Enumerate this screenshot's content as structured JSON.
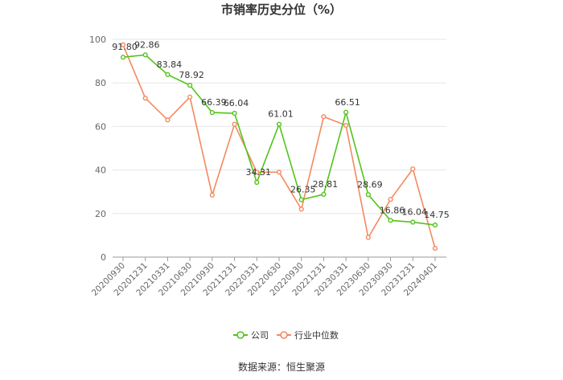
{
  "chart_data": {
    "type": "line",
    "title": "市销率历史分位（%）",
    "categories": [
      "20200930",
      "20201231",
      "20210331",
      "20210630",
      "20210930",
      "20211231",
      "20220331",
      "20220630",
      "20220930",
      "20221231",
      "20230331",
      "20230630",
      "20230930",
      "20231231",
      "20240401"
    ],
    "series": [
      {
        "name": "公司",
        "color": "#52c41a",
        "values": [
          91.8,
          92.86,
          83.84,
          78.92,
          66.39,
          66.04,
          34.31,
          61.01,
          26.35,
          28.81,
          66.51,
          28.69,
          16.86,
          16.04,
          14.75
        ],
        "labels": [
          "91.80",
          "92.86",
          "83.84",
          "78.92",
          "66.39",
          "66.04",
          "34.31",
          "61.01",
          "26.35",
          "28.81",
          "66.51",
          "28.69",
          "16.86",
          "16.04",
          "14.75"
        ]
      },
      {
        "name": "行业中位数",
        "color": "#f4895f",
        "values": [
          97.5,
          73,
          63,
          73.5,
          28.5,
          61,
          39,
          39,
          22,
          64.5,
          60.5,
          9,
          26.5,
          40.5,
          4
        ]
      }
    ],
    "ylim": [
      0,
      100
    ],
    "yticks": [
      0,
      20,
      40,
      60,
      80,
      100
    ],
    "grid": true,
    "legend_position": "bottom",
    "source": "数据来源：恒生聚源"
  }
}
